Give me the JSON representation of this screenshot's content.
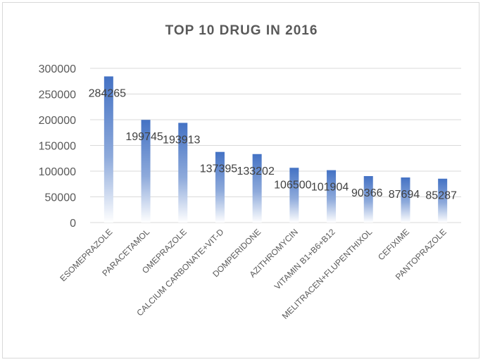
{
  "chart_data": {
    "type": "bar",
    "title": "TOP 10 DRUG IN 2016",
    "xlabel": "",
    "ylabel": "",
    "categories": [
      "ESOMEPRAZOLE",
      "PARACETAMOL",
      "OMEPRAZOLE",
      "CALCIUM CARBONATE+VIT-D",
      "DOMPERIDONE",
      "AZITHROMYCIN",
      "VITAMIN B1+B6+B12",
      "MELITRACEN+FLUPENTHIXOL",
      "CEFIXIME",
      "PANTOPRAZOLE"
    ],
    "values": [
      284265,
      199745,
      193913,
      137395,
      133202,
      106500,
      101904,
      90366,
      87694,
      85287
    ],
    "data_labels": [
      "284265",
      "199745",
      "193913",
      "137395",
      "133202",
      "106500",
      "101904",
      "90366",
      "87694",
      "85287"
    ],
    "ylim": [
      0,
      300000
    ],
    "yticks": [
      0,
      50000,
      100000,
      150000,
      200000,
      250000,
      300000
    ],
    "ytick_labels": [
      "0",
      "50000",
      "100000",
      "150000",
      "200000",
      "250000",
      "300000"
    ],
    "grid": true,
    "legend": "none",
    "colors": {
      "bar_top": "#4472c4",
      "bar_bottom": "#ffffff",
      "grid": "#d9d9d9",
      "text": "#595959",
      "label": "#404040"
    }
  }
}
